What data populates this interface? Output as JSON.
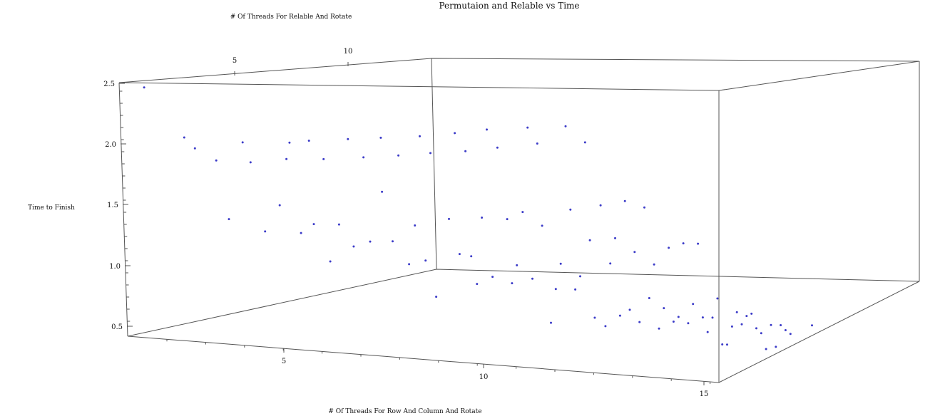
{
  "chart_data": {
    "type": "scatter",
    "title": "Permutaion and Relable vs Time",
    "xlabel": "# Of Threads For Row And Column And Rotate",
    "ylabel": "# Of Threads For Relable And Rotate",
    "zlabel": "Time to Finish",
    "xlim": [
      0,
      15
    ],
    "ylim": [
      0,
      15
    ],
    "zlim": [
      0.4,
      2.5
    ],
    "x_ticks": [
      "5",
      "10",
      "15"
    ],
    "y_ticks": [
      "5",
      "10"
    ],
    "z_ticks": [
      "0.5",
      "1.0",
      "1.5",
      "2.0",
      "2.5"
    ],
    "point_color": "#3b3bc8",
    "grid": false,
    "points": [
      [
        0.3,
        0.5,
        2.46
      ],
      [
        1.2,
        1.0,
        2.06
      ],
      [
        1.4,
        1.3,
        1.97
      ],
      [
        1.8,
        1.9,
        1.87
      ],
      [
        2.1,
        2.0,
        1.39
      ],
      [
        2.4,
        2.2,
        2.03
      ],
      [
        2.6,
        2.2,
        1.87
      ],
      [
        2.9,
        2.5,
        1.3
      ],
      [
        3.2,
        2.8,
        1.52
      ],
      [
        3.4,
        3.0,
        2.04
      ],
      [
        3.3,
        3.1,
        1.9
      ],
      [
        3.6,
        3.4,
        1.29
      ],
      [
        3.8,
        3.4,
        2.06
      ],
      [
        3.9,
        3.5,
        1.37
      ],
      [
        4.1,
        3.7,
        1.91
      ],
      [
        4.2,
        4.0,
        1.06
      ],
      [
        4.4,
        4.1,
        1.37
      ],
      [
        4.6,
        4.2,
        2.08
      ],
      [
        4.7,
        4.4,
        1.19
      ],
      [
        4.9,
        4.6,
        1.93
      ],
      [
        5.0,
        4.9,
        1.23
      ],
      [
        5.3,
        4.9,
        1.65
      ],
      [
        5.2,
        5.2,
        2.09
      ],
      [
        5.5,
        5.2,
        1.24
      ],
      [
        5.6,
        5.4,
        1.95
      ],
      [
        5.8,
        5.7,
        1.05
      ],
      [
        5.9,
        5.9,
        1.37
      ],
      [
        6.0,
        6.0,
        2.11
      ],
      [
        6.1,
        6.2,
        1.08
      ],
      [
        6.2,
        6.3,
        1.97
      ],
      [
        6.3,
        6.5,
        0.78
      ],
      [
        6.6,
        6.6,
        1.43
      ],
      [
        6.7,
        6.8,
        2.14
      ],
      [
        6.8,
        6.9,
        1.14
      ],
      [
        6.9,
        7.1,
        1.99
      ],
      [
        7.0,
        7.3,
        1.12
      ],
      [
        7.1,
        7.5,
        0.89
      ],
      [
        7.2,
        7.6,
        1.44
      ],
      [
        7.3,
        7.7,
        2.17
      ],
      [
        7.4,
        7.9,
        0.95
      ],
      [
        7.5,
        8.0,
        2.02
      ],
      [
        7.7,
        8.2,
        1.43
      ],
      [
        7.8,
        8.3,
        0.9
      ],
      [
        7.9,
        8.4,
        1.05
      ],
      [
        8.0,
        8.6,
        1.49
      ],
      [
        8.1,
        8.7,
        2.19
      ],
      [
        8.2,
        8.8,
        0.94
      ],
      [
        8.3,
        8.9,
        2.06
      ],
      [
        8.4,
        9.0,
        1.38
      ],
      [
        8.6,
        9.1,
        0.58
      ],
      [
        8.7,
        9.2,
        0.86
      ],
      [
        8.8,
        9.3,
        1.07
      ],
      [
        8.9,
        9.4,
        2.21
      ],
      [
        9.0,
        9.5,
        1.52
      ],
      [
        9.1,
        9.6,
        0.86
      ],
      [
        9.2,
        9.7,
        0.97
      ],
      [
        9.3,
        9.8,
        2.08
      ],
      [
        9.4,
        9.9,
        1.27
      ],
      [
        9.5,
        10.0,
        0.63
      ],
      [
        9.6,
        10.2,
        1.56
      ],
      [
        9.7,
        10.3,
        0.56
      ],
      [
        9.8,
        10.4,
        1.08
      ],
      [
        9.9,
        10.5,
        1.29
      ],
      [
        10.0,
        10.6,
        0.65
      ],
      [
        10.1,
        10.7,
        1.6
      ],
      [
        10.2,
        10.8,
        0.7
      ],
      [
        10.3,
        10.9,
        1.18
      ],
      [
        10.4,
        11.0,
        0.6
      ],
      [
        10.5,
        11.1,
        1.55
      ],
      [
        10.6,
        11.2,
        0.8
      ],
      [
        10.7,
        11.3,
        1.08
      ],
      [
        10.8,
        11.4,
        0.55
      ],
      [
        10.9,
        11.5,
        0.72
      ],
      [
        11.0,
        11.6,
        1.22
      ],
      [
        11.1,
        11.7,
        0.61
      ],
      [
        11.2,
        11.8,
        0.65
      ],
      [
        11.3,
        11.9,
        1.26
      ],
      [
        11.4,
        12.0,
        0.6
      ],
      [
        11.5,
        12.1,
        0.76
      ],
      [
        11.6,
        12.2,
        1.26
      ],
      [
        11.7,
        12.3,
        0.65
      ],
      [
        11.8,
        12.4,
        0.53
      ],
      [
        11.9,
        12.5,
        0.65
      ],
      [
        12.0,
        12.6,
        0.81
      ],
      [
        12.1,
        12.7,
        0.43
      ],
      [
        12.2,
        12.8,
        0.43
      ],
      [
        12.3,
        12.9,
        0.58
      ],
      [
        12.4,
        13.0,
        0.7
      ],
      [
        12.5,
        13.1,
        0.6
      ],
      [
        12.6,
        13.2,
        0.67
      ],
      [
        12.7,
        13.3,
        0.69
      ],
      [
        12.8,
        13.4,
        0.57
      ],
      [
        12.9,
        13.5,
        0.53
      ],
      [
        13.0,
        13.6,
        0.4
      ],
      [
        13.1,
        13.7,
        0.6
      ],
      [
        13.2,
        13.8,
        0.42
      ],
      [
        13.3,
        13.9,
        0.6
      ],
      [
        13.4,
        14.0,
        0.56
      ],
      [
        13.5,
        14.1,
        0.53
      ],
      [
        14.0,
        14.3,
        0.61
      ]
    ]
  }
}
